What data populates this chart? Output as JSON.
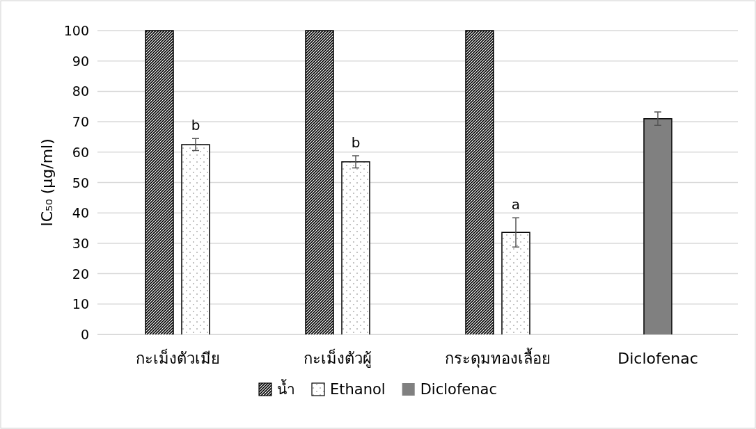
{
  "chart_data": {
    "type": "bar",
    "ylabel": "IC₅₀ (µg/ml)",
    "categories": [
      "กะเม็งตัวเมีย",
      "กะเม็งตัวผู้",
      "กระดุมทองเลื้อย",
      "Diclofenac"
    ],
    "series": [
      {
        "name": "น้ำ",
        "color": "#000000",
        "values": [
          100,
          100,
          100,
          null
        ]
      },
      {
        "name": "Ethanol",
        "color": "#ffffff",
        "values": [
          62.5,
          56.8,
          33.6,
          null
        ],
        "errors": [
          2,
          2,
          4.8,
          null
        ]
      },
      {
        "name": "Diclofenac",
        "color": "#808080",
        "values": [
          null,
          null,
          null,
          71
        ],
        "errors": [
          null,
          null,
          null,
          2.2
        ]
      }
    ],
    "ylim": [
      0,
      100
    ],
    "yticks": [
      0,
      10,
      20,
      30,
      40,
      50,
      60,
      70,
      80,
      90,
      100
    ],
    "grid": "y",
    "legend": "bottom",
    "annotations": [
      {
        "text": "b",
        "x": "กะเม็งตัวเมีย",
        "y": 62.5
      },
      {
        "text": "b",
        "x": "กะเม็งตัวผู้",
        "y": 56.8
      },
      {
        "text": "a",
        "x": "กระดุมทองเลื้อย",
        "y": 33.6
      }
    ]
  }
}
